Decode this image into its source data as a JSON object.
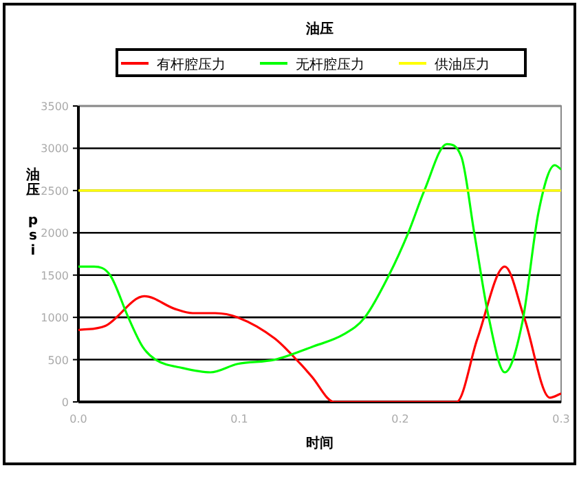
{
  "chart_data": {
    "type": "line",
    "title": "油压",
    "xlabel": "时间",
    "ylabel": "油压 psi",
    "legend": "top",
    "xlim": [
      0,
      0.3
    ],
    "xticks": [
      {
        "value": 0,
        "label": "0.0"
      },
      0.1,
      0.2,
      0.3
    ],
    "ylim": [
      0,
      3500
    ],
    "yticks": [
      0,
      500,
      1000,
      1500,
      2000,
      2500,
      3000,
      3500
    ],
    "grid": "y",
    "marker": "none",
    "line_style": "solid",
    "series": [
      {
        "name": "有杆腔压力",
        "color": "#ff0000",
        "x": [
          0,
          0.0168,
          0.041,
          0.06,
          0.071,
          0.085,
          0.099,
          0.122,
          0.138,
          0.145,
          0.159,
          0.235,
          0.248,
          0.265,
          0.277,
          0.293,
          0.3
        ],
        "values": [
          850,
          900,
          1250,
          1100,
          1050,
          1050,
          1000,
          750,
          450,
          300,
          0,
          0,
          750,
          1600,
          1000,
          50,
          100
        ]
      },
      {
        "name": "无杆腔压力",
        "color": "#00ff00",
        "x": [
          0,
          0.0097,
          0.0197,
          0.031,
          0.04,
          0.048,
          0.065,
          0.082,
          0.099,
          0.122,
          0.145,
          0.165,
          0.178,
          0.193,
          0.205,
          0.215,
          0.229,
          0.238,
          0.246,
          0.255,
          0.265,
          0.276,
          0.286,
          0.296,
          0.3
        ],
        "values": [
          1600,
          1600,
          1500,
          1000,
          650,
          500,
          400,
          350,
          450,
          500,
          650,
          800,
          1000,
          1500,
          2000,
          2500,
          3050,
          2900,
          2000,
          1000,
          350,
          950,
          2250,
          2800,
          2750
        ]
      },
      {
        "name": "供油压力",
        "color": "#ffff00",
        "x": [
          0,
          0.3
        ],
        "values": [
          2500,
          2500
        ]
      }
    ]
  }
}
